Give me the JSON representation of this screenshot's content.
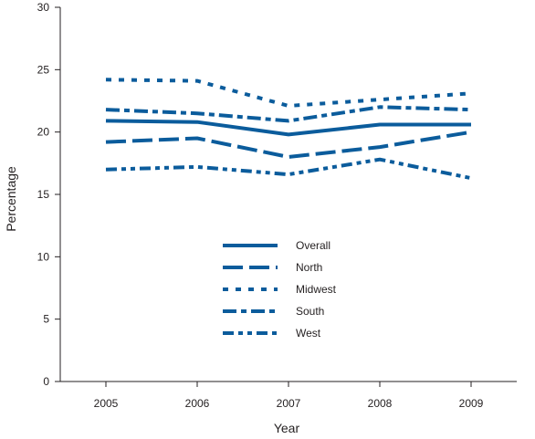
{
  "chart_data": {
    "type": "line",
    "title": "",
    "xlabel": "Year",
    "ylabel": "Percentage",
    "x": [
      "2005",
      "2006",
      "2007",
      "2008",
      "2009"
    ],
    "ylim": [
      0,
      30
    ],
    "yticks": [
      0,
      5,
      10,
      15,
      20,
      25,
      30
    ],
    "grid": false,
    "legend_position": "center",
    "line_color": "#0b5c9c",
    "series": [
      {
        "name": "Overall",
        "style": "solid",
        "values": [
          20.9,
          20.8,
          19.8,
          20.6,
          20.6
        ]
      },
      {
        "name": "North",
        "style": "dashed",
        "values": [
          19.2,
          19.5,
          18.0,
          18.8,
          20.0
        ]
      },
      {
        "name": "Midwest",
        "style": "dotted",
        "values": [
          24.2,
          24.1,
          22.1,
          22.6,
          23.1
        ]
      },
      {
        "name": "South",
        "style": "dash-dot",
        "values": [
          21.8,
          21.5,
          20.9,
          22.0,
          21.8
        ]
      },
      {
        "name": "West",
        "style": "dash-dot-dot",
        "values": [
          17.0,
          17.2,
          16.6,
          17.8,
          16.3
        ]
      }
    ]
  }
}
